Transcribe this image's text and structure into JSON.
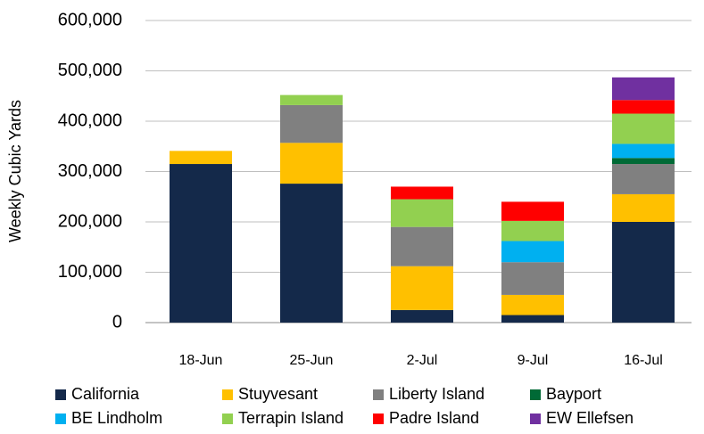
{
  "chart_data": {
    "type": "stacked_bar",
    "y_label": "Weekly Cubic Yards",
    "categories": [
      "18-Jun",
      "25-Jun",
      "2-Jul",
      "9-Jul",
      "16-Jul"
    ],
    "series": [
      {
        "name": "California",
        "color": "#14294a",
        "values": [
          315000,
          276000,
          25000,
          15000,
          200000
        ]
      },
      {
        "name": "Stuyvesant",
        "color": "#ffc000",
        "values": [
          26000,
          81000,
          87000,
          40000,
          55000
        ]
      },
      {
        "name": "Liberty Island",
        "color": "#808080",
        "values": [
          null,
          75000,
          78000,
          65000,
          60000
        ]
      },
      {
        "name": "Bayport",
        "color": "#006a36",
        "values": [
          null,
          null,
          null,
          null,
          12000
        ]
      },
      {
        "name": "BE Lindholm",
        "color": "#00b0f0",
        "values": [
          null,
          null,
          null,
          42000,
          28000
        ]
      },
      {
        "name": "Terrapin Island",
        "color": "#92d050",
        "values": [
          null,
          20000,
          55000,
          40000,
          60000
        ]
      },
      {
        "name": "Padre Island",
        "color": "#ff0000",
        "values": [
          null,
          null,
          25000,
          38000,
          27000
        ]
      },
      {
        "name": "EW Ellefsen",
        "color": "#7030a0",
        "values": [
          null,
          null,
          null,
          null,
          45000
        ]
      }
    ],
    "ylim": [
      0,
      600000
    ],
    "yticks": [
      0,
      {
        "value": 100000,
        "label": "100,000"
      },
      {
        "value": 200000,
        "label": "200,000"
      },
      {
        "value": 300000,
        "label": "300,000"
      },
      {
        "value": 400000,
        "label": "400,000"
      },
      {
        "value": 500000,
        "label": "500,000"
      },
      {
        "value": 600000,
        "label": "600,000"
      }
    ],
    "grid": true
  }
}
